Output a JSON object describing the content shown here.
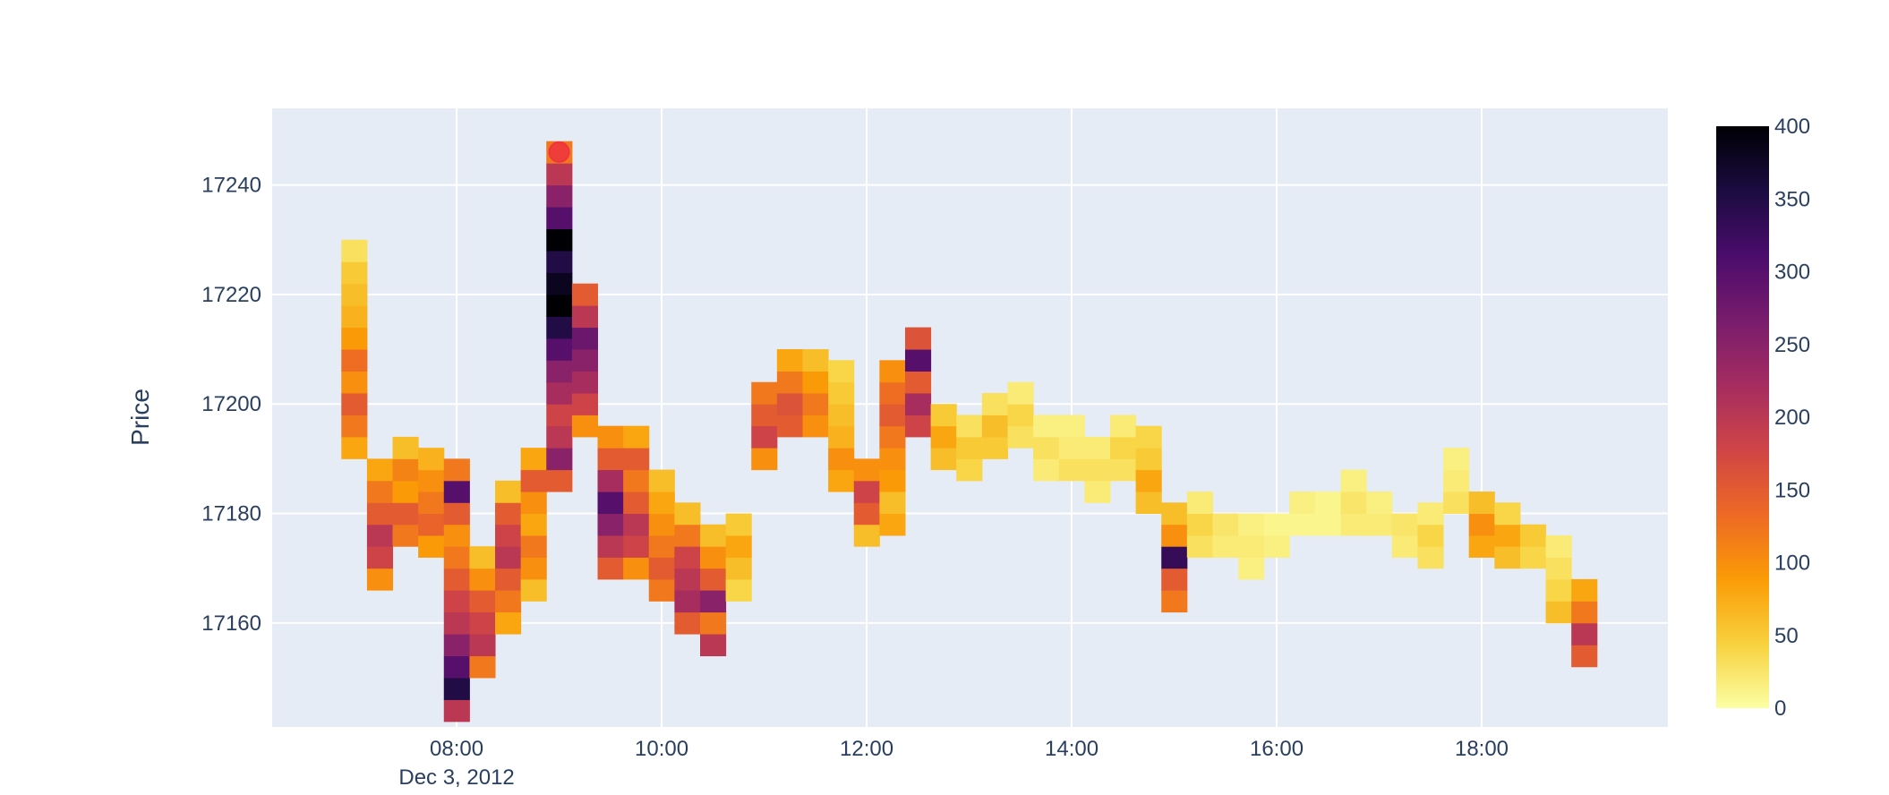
{
  "chart_data": {
    "type": "heatmap",
    "y_label": "Price",
    "x_date_label": "Dec 3, 2012",
    "xlim": [
      "2012-12-03 06:12",
      "2012-12-03 19:49"
    ],
    "xticks": [
      {
        "value": "2012-12-03 08:00",
        "label": "08:00"
      },
      {
        "value": "2012-12-03 10:00",
        "label": "10:00"
      },
      {
        "value": "2012-12-03 12:00",
        "label": "12:00"
      },
      {
        "value": "2012-12-03 14:00",
        "label": "14:00"
      },
      {
        "value": "2012-12-03 16:00",
        "label": "16:00"
      },
      {
        "value": "2012-12-03 18:00",
        "label": "18:00"
      }
    ],
    "ylim": [
      17141,
      17254
    ],
    "yticks": [
      17160,
      17180,
      17200,
      17220,
      17240
    ],
    "grid": true,
    "cell_minutes": 15,
    "cell_price": 4,
    "zlim": [
      0,
      400
    ],
    "zticks": [
      0,
      50,
      100,
      150,
      200,
      250,
      300,
      350,
      400
    ],
    "colorscale": [
      "#fcffa4",
      "#f7d13d",
      "#fb9b06",
      "#ed6925",
      "#cf4446",
      "#a52c60",
      "#781c6d",
      "#4a0c6b",
      "#1b0c41",
      "#000004"
    ],
    "columns": [
      {
        "x": "2012-12-03 07:00",
        "y0": 17190,
        "z": [
          80,
          120,
          150,
          100,
          130,
          90,
          70,
          60,
          50,
          30
        ]
      },
      {
        "x": "2012-12-03 07:15",
        "y0": 17166,
        "z": [
          100,
          180,
          200,
          150,
          120,
          80
        ]
      },
      {
        "x": "2012-12-03 07:30",
        "y0": 17174,
        "z": [
          120,
          150,
          90,
          110,
          60
        ]
      },
      {
        "x": "2012-12-03 07:45",
        "y0": 17172,
        "z": [
          90,
          140,
          120,
          100,
          70
        ]
      },
      {
        "x": "2012-12-03 08:00",
        "y0": 17142,
        "z": [
          200,
          350,
          300,
          250,
          200,
          180,
          150,
          120,
          100,
          150,
          300,
          120
        ]
      },
      {
        "x": "2012-12-03 08:15",
        "y0": 17150,
        "z": [
          120,
          200,
          180,
          150,
          100,
          60
        ]
      },
      {
        "x": "2012-12-03 08:30",
        "y0": 17158,
        "z": [
          80,
          120,
          150,
          200,
          180,
          150,
          60
        ]
      },
      {
        "x": "2012-12-03 08:45",
        "y0": 17164,
        "z": [
          60,
          100,
          120,
          80,
          100,
          150,
          80
        ]
      },
      {
        "x": "2012-12-03 09:00",
        "y0": 17184,
        "z": [
          150,
          250,
          200,
          180,
          220,
          250,
          300,
          350,
          400,
          380,
          350,
          400,
          300,
          250,
          200,
          120
        ]
      },
      {
        "x": "2012-12-03 09:15",
        "y0": 17194,
        "z": [
          100,
          180,
          220,
          250,
          280,
          200,
          150
        ]
      },
      {
        "x": "2012-12-03 09:30",
        "y0": 17168,
        "z": [
          150,
          200,
          250,
          300,
          220,
          150,
          100
        ]
      },
      {
        "x": "2012-12-03 09:45",
        "y0": 17168,
        "z": [
          100,
          180,
          200,
          150,
          120,
          150,
          80
        ]
      },
      {
        "x": "2012-12-03 10:00",
        "y0": 17164,
        "z": [
          120,
          150,
          120,
          100,
          80,
          60
        ]
      },
      {
        "x": "2012-12-03 10:15",
        "y0": 17158,
        "z": [
          150,
          220,
          200,
          180,
          120,
          60
        ]
      },
      {
        "x": "2012-12-03 10:30",
        "y0": 17154,
        "z": [
          200,
          120,
          250,
          150,
          100,
          60
        ]
      },
      {
        "x": "2012-12-03 10:45",
        "y0": 17164,
        "z": [
          40,
          60,
          80,
          50
        ]
      },
      {
        "x": "2012-12-03 11:00",
        "y0": 17188,
        "z": [
          100,
          180,
          150,
          120
        ]
      },
      {
        "x": "2012-12-03 11:15",
        "y0": 17194,
        "z": [
          150,
          160,
          120,
          80
        ]
      },
      {
        "x": "2012-12-03 11:30",
        "y0": 17194,
        "z": [
          100,
          120,
          90,
          60
        ]
      },
      {
        "x": "2012-12-03 11:45",
        "y0": 17184,
        "z": [
          80,
          100,
          70,
          60,
          50,
          40
        ]
      },
      {
        "x": "2012-12-03 12:00",
        "y0": 17174,
        "z": [
          60,
          150,
          180,
          100
        ]
      },
      {
        "x": "2012-12-03 12:15",
        "y0": 17176,
        "z": [
          80,
          60,
          90,
          100,
          120,
          150,
          130,
          100
        ]
      },
      {
        "x": "2012-12-03 12:30",
        "y0": 17194,
        "z": [
          180,
          220,
          150,
          300,
          160
        ]
      },
      {
        "x": "2012-12-03 12:45",
        "y0": 17188,
        "z": [
          60,
          80,
          50
        ]
      },
      {
        "x": "2012-12-03 13:00",
        "y0": 17186,
        "z": [
          40,
          50,
          30
        ]
      },
      {
        "x": "2012-12-03 13:15",
        "y0": 17190,
        "z": [
          50,
          60,
          30
        ]
      },
      {
        "x": "2012-12-03 13:30",
        "y0": 17192,
        "z": [
          30,
          40,
          20
        ]
      },
      {
        "x": "2012-12-03 13:45",
        "y0": 17186,
        "z": [
          20,
          30,
          15
        ]
      },
      {
        "x": "2012-12-03 14:00",
        "y0": 17186,
        "z": [
          30,
          20,
          15
        ]
      },
      {
        "x": "2012-12-03 14:15",
        "y0": 17182,
        "z": [
          20,
          30,
          20
        ]
      },
      {
        "x": "2012-12-03 14:30",
        "y0": 17186,
        "z": [
          30,
          40,
          20
        ]
      },
      {
        "x": "2012-12-03 14:45",
        "y0": 17180,
        "z": [
          60,
          80,
          50,
          40
        ]
      },
      {
        "x": "2012-12-03 15:00",
        "y0": 17162,
        "z": [
          120,
          150,
          330,
          100,
          60
        ]
      },
      {
        "x": "2012-12-03 15:15",
        "y0": 17172,
        "z": [
          30,
          40,
          20
        ]
      },
      {
        "x": "2012-12-03 15:30",
        "y0": 17172,
        "z": [
          20,
          25
        ]
      },
      {
        "x": "2012-12-03 15:45",
        "y0": 17168,
        "z": [
          15,
          20,
          15
        ]
      },
      {
        "x": "2012-12-03 16:00",
        "y0": 17172,
        "z": [
          15,
          10
        ]
      },
      {
        "x": "2012-12-03 16:15",
        "y0": 17176,
        "z": [
          10,
          15
        ]
      },
      {
        "x": "2012-12-03 16:30",
        "y0": 17176,
        "z": [
          10,
          10
        ]
      },
      {
        "x": "2012-12-03 16:45",
        "y0": 17176,
        "z": [
          20,
          25,
          15
        ]
      },
      {
        "x": "2012-12-03 17:00",
        "y0": 17176,
        "z": [
          20,
          15
        ]
      },
      {
        "x": "2012-12-03 17:15",
        "y0": 17172,
        "z": [
          20,
          25
        ]
      },
      {
        "x": "2012-12-03 17:30",
        "y0": 17170,
        "z": [
          30,
          40,
          20
        ]
      },
      {
        "x": "2012-12-03 17:45",
        "y0": 17180,
        "z": [
          30,
          20,
          15
        ]
      },
      {
        "x": "2012-12-03 18:00",
        "y0": 17172,
        "z": [
          80,
          100,
          60
        ]
      },
      {
        "x": "2012-12-03 18:15",
        "y0": 17170,
        "z": [
          60,
          80,
          40
        ]
      },
      {
        "x": "2012-12-03 18:30",
        "y0": 17170,
        "z": [
          40,
          50
        ]
      },
      {
        "x": "2012-12-03 18:45",
        "y0": 17160,
        "z": [
          60,
          40,
          30,
          20
        ]
      },
      {
        "x": "2012-12-03 19:00",
        "y0": 17152,
        "z": [
          150,
          200,
          120,
          80
        ]
      }
    ],
    "marker": {
      "x": "2012-12-03 09:00",
      "y": 17246,
      "color": "#ef3340"
    }
  }
}
